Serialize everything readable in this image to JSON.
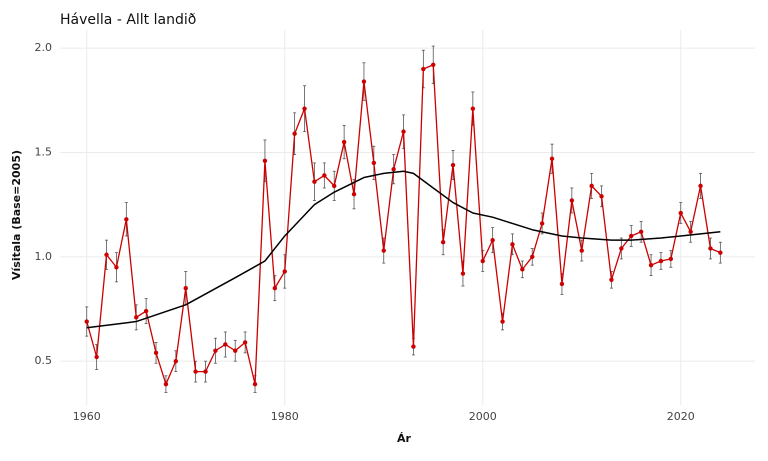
{
  "chart_data": {
    "type": "line",
    "title": "Hávella - Allt landið",
    "xlabel": "Ár",
    "ylabel": "Vísitala (Base=2005)",
    "x": [
      1960,
      1961,
      1962,
      1963,
      1964,
      1965,
      1966,
      1967,
      1968,
      1969,
      1970,
      1971,
      1972,
      1973,
      1974,
      1975,
      1976,
      1977,
      1978,
      1979,
      1980,
      1981,
      1982,
      1983,
      1984,
      1985,
      1986,
      1987,
      1988,
      1989,
      1990,
      1991,
      1992,
      1993,
      1994,
      1995,
      1996,
      1997,
      1998,
      1999,
      2000,
      2001,
      2002,
      2003,
      2004,
      2005,
      2006,
      2007,
      2008,
      2009,
      2010,
      2011,
      2012,
      2013,
      2014,
      2015,
      2016,
      2017,
      2018,
      2019,
      2020,
      2021,
      2022,
      2023,
      2024
    ],
    "series": [
      {
        "color": "#cc0000",
        "values": [
          0.69,
          0.52,
          1.01,
          0.95,
          1.18,
          0.71,
          0.74,
          0.54,
          0.39,
          0.5,
          0.85,
          0.45,
          0.45,
          0.55,
          0.58,
          0.55,
          0.59,
          0.39,
          1.46,
          0.85,
          0.93,
          1.59,
          1.71,
          1.36,
          1.39,
          1.34,
          1.55,
          1.3,
          1.84,
          1.45,
          1.03,
          1.42,
          1.6,
          0.57,
          1.9,
          1.92,
          1.07,
          1.44,
          0.92,
          1.71,
          0.98,
          1.08,
          0.69,
          1.06,
          0.94,
          1.0,
          1.16,
          1.47,
          0.87,
          1.27,
          1.03,
          1.34,
          1.29,
          0.89,
          1.04,
          1.1,
          1.12,
          0.96,
          0.98,
          0.99,
          1.21,
          1.12,
          1.34,
          1.04,
          1.02
        ],
        "errors": [
          0.07,
          0.06,
          0.07,
          0.07,
          0.08,
          0.06,
          0.06,
          0.05,
          0.04,
          0.05,
          0.08,
          0.05,
          0.05,
          0.06,
          0.06,
          0.05,
          0.05,
          0.04,
          0.1,
          0.06,
          0.08,
          0.1,
          0.11,
          0.09,
          0.06,
          0.07,
          0.08,
          0.07,
          0.09,
          0.08,
          0.06,
          0.07,
          0.08,
          0.04,
          0.09,
          0.09,
          0.06,
          0.07,
          0.06,
          0.08,
          0.05,
          0.06,
          0.04,
          0.05,
          0.04,
          0.04,
          0.05,
          0.07,
          0.05,
          0.06,
          0.05,
          0.06,
          0.05,
          0.04,
          0.05,
          0.05,
          0.05,
          0.05,
          0.04,
          0.04,
          0.05,
          0.05,
          0.06,
          0.05,
          0.05
        ]
      },
      {
        "color": "#000000",
        "x": [
          1960,
          1965,
          1970,
          1975,
          1978,
          1980,
          1983,
          1985,
          1988,
          1990,
          1992,
          1993,
          1995,
          1997,
          1999,
          2001,
          2003,
          2005,
          2008,
          2010,
          2013,
          2015,
          2018,
          2020,
          2022,
          2024
        ],
        "values": [
          0.66,
          0.69,
          0.77,
          0.9,
          0.98,
          1.1,
          1.25,
          1.31,
          1.38,
          1.4,
          1.41,
          1.4,
          1.33,
          1.26,
          1.21,
          1.19,
          1.16,
          1.13,
          1.1,
          1.09,
          1.08,
          1.08,
          1.09,
          1.1,
          1.11,
          1.12
        ]
      }
    ],
    "xlim": [
      1957.3,
      2027.5
    ],
    "ylim": [
      0.29,
      2.087
    ],
    "xticks": [
      1960,
      1980,
      2000,
      2020
    ],
    "yticks": [
      0.5,
      {
        "value": 1.0,
        "label": "1.0"
      },
      1.5,
      {
        "value": 2.0,
        "label": "2.0"
      }
    ],
    "grid": true
  }
}
